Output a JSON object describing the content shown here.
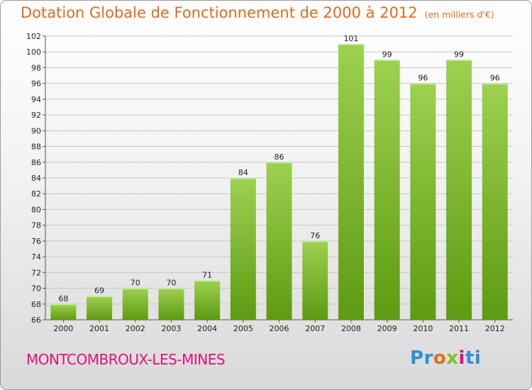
{
  "header": {
    "title": "Dotation Globale de Fonctionnement de 2000 à 2012",
    "unit": "(en milliers d'€)"
  },
  "footer": {
    "town": "MONTCOMBROUX-LES-MINES",
    "logo": [
      "Pr",
      "o",
      "x",
      "i",
      "ti"
    ]
  },
  "colors": {
    "title": "#e06a1e",
    "bar_top": "#9dd150",
    "bar_bottom": "#5e9a12",
    "town": "#e0127a"
  },
  "chart_data": {
    "type": "bar",
    "title": "Dotation Globale de Fonctionnement de 2000 à 2012",
    "subtitle": "(en milliers d'€)",
    "categories": [
      "2000",
      "2001",
      "2002",
      "2003",
      "2004",
      "2005",
      "2006",
      "2007",
      "2008",
      "2009",
      "2010",
      "2011",
      "2012"
    ],
    "values": [
      68,
      69,
      70,
      70,
      71,
      84,
      86,
      76,
      101,
      99,
      96,
      99,
      96
    ],
    "ylim": [
      66,
      102
    ],
    "yticks": [
      66,
      68,
      70,
      72,
      74,
      76,
      78,
      80,
      82,
      84,
      86,
      88,
      90,
      92,
      94,
      96,
      98,
      100,
      102
    ],
    "grid": true,
    "data_labels": true
  }
}
